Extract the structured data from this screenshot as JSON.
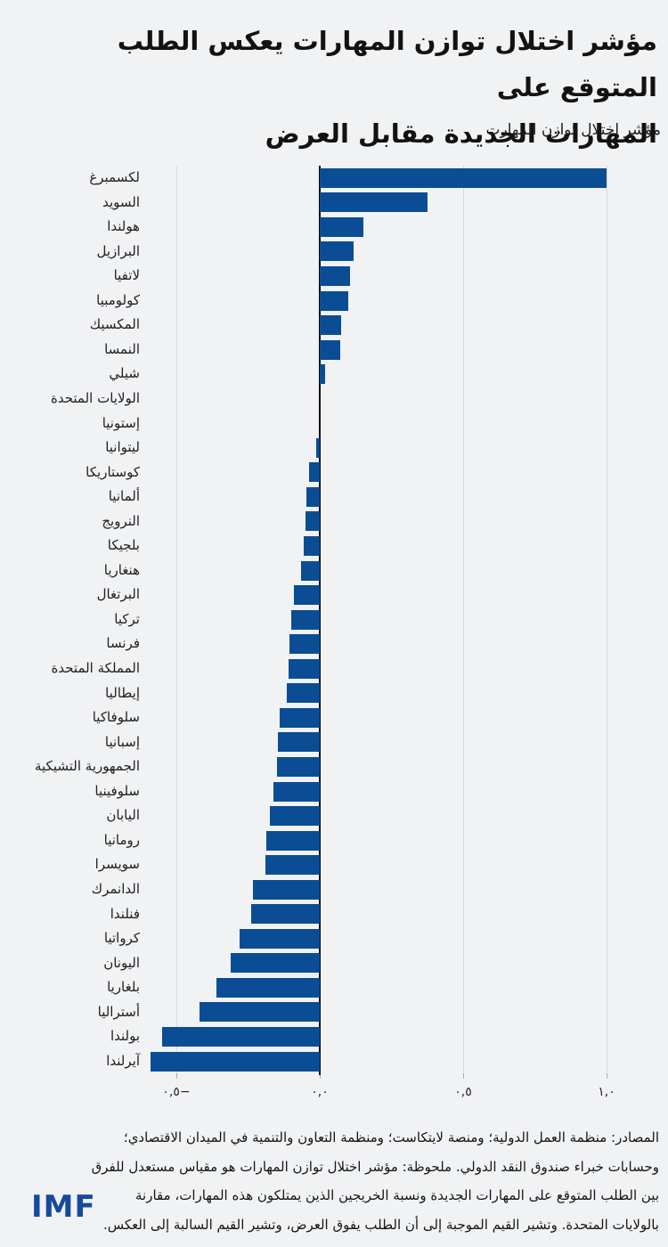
{
  "header": {
    "title_line1": "مؤشر اختلال توازن المهارات يعكس الطلب المتوقع على",
    "title_line2": "المهارات الجديدة مقابل العرض",
    "subtitle": "مؤشر اختلال توازن المهارت"
  },
  "chart_data": {
    "type": "bar",
    "orientation": "horizontal",
    "title": "مؤشر اختلال توازن المهارات يعكس الطلب المتوقع على المهارات الجديدة مقابل العرض",
    "axis_caption": "مؤشر اختلال توازن المهارت",
    "categories": [
      "لكسمبرغ",
      "السويد",
      "هولندا",
      "البرازيل",
      "لاتفيا",
      "كولومبيا",
      "المكسيك",
      "النمسا",
      "شيلي",
      "الولايات المتحدة",
      "إستونيا",
      "ليتوانيا",
      "كوستاريكا",
      "ألمانيا",
      "النرويج",
      "بلجيكا",
      "هنغاريا",
      "البرتغال",
      "تركيا",
      "فرنسا",
      "المملكة المتحدة",
      "إيطاليا",
      "سلوفاكيا",
      "إسبانيا",
      "الجمهورية التشيكية",
      "سلوفينيا",
      "اليابان",
      "رومانيا",
      "سويسرا",
      "الدانمرك",
      "فنلندا",
      "كرواتيا",
      "اليونان",
      "بلغاريا",
      "أستراليا",
      "بولندا",
      "آيرلندا"
    ],
    "values": [
      1.0,
      0.375,
      0.152,
      0.118,
      0.105,
      0.098,
      0.073,
      0.071,
      0.02,
      0.0,
      0.0,
      -0.013,
      -0.038,
      -0.048,
      -0.05,
      -0.057,
      -0.066,
      -0.09,
      -0.098,
      -0.106,
      -0.108,
      -0.116,
      -0.14,
      -0.145,
      -0.148,
      -0.16,
      -0.175,
      -0.185,
      -0.19,
      -0.233,
      -0.24,
      -0.28,
      -0.31,
      -0.36,
      -0.42,
      -0.55,
      -0.59
    ],
    "xlim": [
      -0.6,
      1.2
    ],
    "x_ticks": [
      -0.5,
      0.0,
      0.5,
      1.0
    ],
    "x_tick_labels": [
      "٠,٥−",
      "٠,٠",
      "٠,٥",
      "١,٠"
    ],
    "bar_color": "#0b4d94",
    "zero_line_color": "#0c0c0c",
    "grid": "vertical-light",
    "legend": "none"
  },
  "footer": {
    "lines": [
      "المصادر: منظمة العمل الدولية؛ ومنصة لايتكاست؛ ومنظمة التعاون والتنمية في الميدان الاقتصادي؛",
      "وحسابات خبراء صندوق النقد الدولي. ملحوظة: مؤشر اختلال توازن المهارات هو مقياس مستعدل للفرق",
      "بين الطلب المتوقع على المهارات الجديدة ونسبة الخريجين الذين يمتلكون هذه المهارات، مقارنة",
      "بالولايات المتحدة. وتشير القيم الموجبة إلى أن الطلب يفوق العرض، وتشير القيم السالبة إلى العكس."
    ]
  },
  "logo": {
    "text": "IMF",
    "color": "#164b9c"
  }
}
